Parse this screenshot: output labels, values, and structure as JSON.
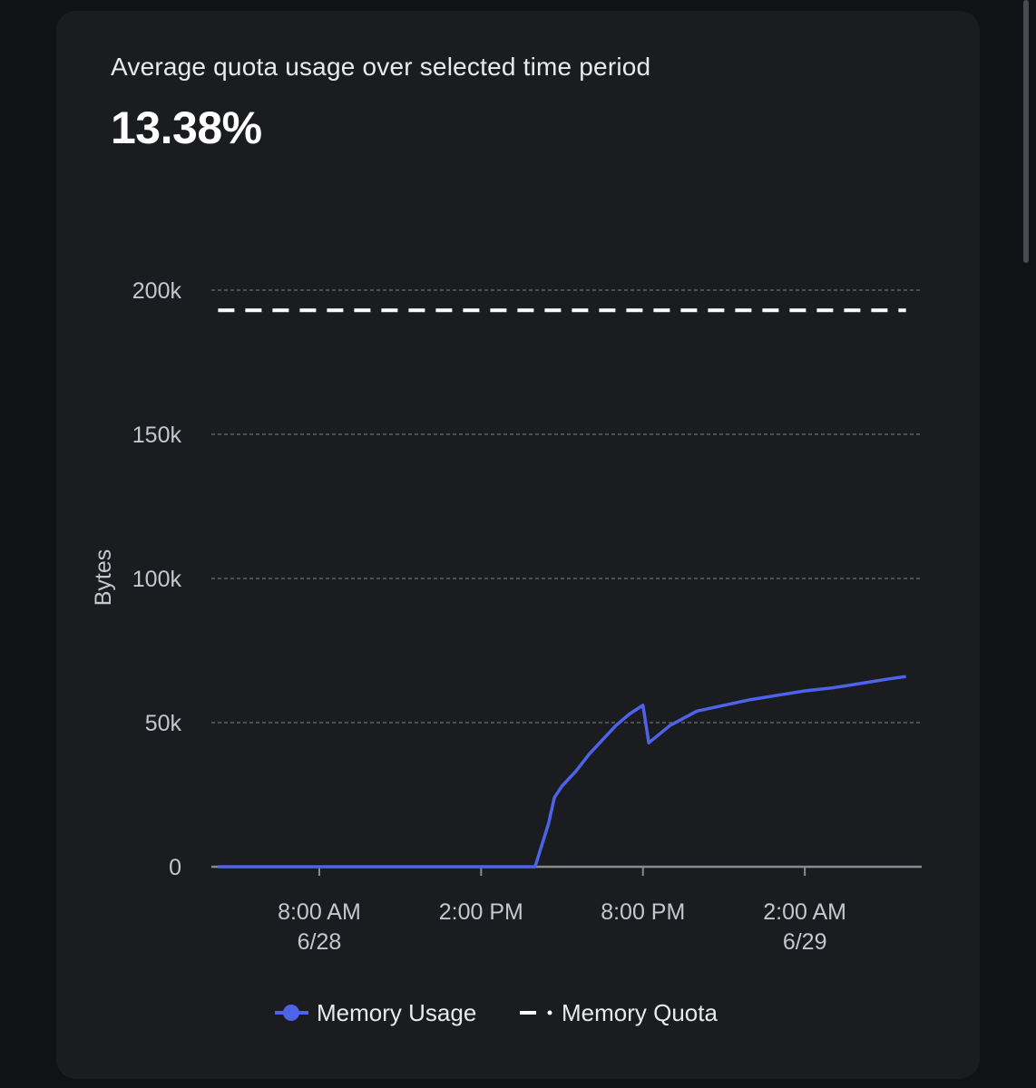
{
  "summary": {
    "caption": "Average quota usage over selected time period",
    "value": "13.38%"
  },
  "colors": {
    "background": "#111216",
    "card": "#1b1c20",
    "usage_line": "#4d63ea",
    "quota_line": "#ffffff",
    "grid": "#6a6b70"
  },
  "chart_data": {
    "type": "line",
    "ylabel": "Bytes",
    "ylim": [
      0,
      200000
    ],
    "yticks": [
      {
        "value": 0,
        "label": "0"
      },
      {
        "value": 50000,
        "label": "50k"
      },
      {
        "value": 100000,
        "label": "100k"
      },
      {
        "value": 150000,
        "label": "150k"
      },
      {
        "value": 200000,
        "label": "200k"
      }
    ],
    "xlim": [
      "2023-06-28T04:00",
      "2023-06-29T06:20"
    ],
    "xticks": [
      {
        "x": "2023-06-28T08:00",
        "line1": "8:00 AM",
        "line2": "6/28"
      },
      {
        "x": "2023-06-28T14:00",
        "line1": "2:00 PM",
        "line2": ""
      },
      {
        "x": "2023-06-28T20:00",
        "line1": "8:00 PM",
        "line2": ""
      },
      {
        "x": "2023-06-29T02:00",
        "line1": "2:00 AM",
        "line2": "6/29"
      }
    ],
    "grid": true,
    "legend": "bottom",
    "series": [
      {
        "name": "Memory Usage",
        "style": "solid",
        "points": [
          {
            "x": "2023-06-28T04:15",
            "y": 0
          },
          {
            "x": "2023-06-28T16:00",
            "y": 0
          },
          {
            "x": "2023-06-28T16:30",
            "y": 15000
          },
          {
            "x": "2023-06-28T16:43",
            "y": 24000
          },
          {
            "x": "2023-06-28T17:00",
            "y": 28000
          },
          {
            "x": "2023-06-28T17:30",
            "y": 33000
          },
          {
            "x": "2023-06-28T18:00",
            "y": 39000
          },
          {
            "x": "2023-06-28T18:30",
            "y": 44000
          },
          {
            "x": "2023-06-28T19:00",
            "y": 49000
          },
          {
            "x": "2023-06-28T19:30",
            "y": 53000
          },
          {
            "x": "2023-06-28T20:00",
            "y": 56000
          },
          {
            "x": "2023-06-28T20:13",
            "y": 43000
          },
          {
            "x": "2023-06-28T21:00",
            "y": 49000
          },
          {
            "x": "2023-06-28T22:00",
            "y": 54000
          },
          {
            "x": "2023-06-28T23:00",
            "y": 56000
          },
          {
            "x": "2023-06-29T00:00",
            "y": 58000
          },
          {
            "x": "2023-06-29T01:00",
            "y": 59500
          },
          {
            "x": "2023-06-29T02:00",
            "y": 61000
          },
          {
            "x": "2023-06-29T03:00",
            "y": 62000
          },
          {
            "x": "2023-06-29T04:00",
            "y": 63500
          },
          {
            "x": "2023-06-29T05:00",
            "y": 65000
          },
          {
            "x": "2023-06-29T05:45",
            "y": 66000
          }
        ]
      },
      {
        "name": "Memory Quota",
        "style": "dashed",
        "points": [
          {
            "x": "2023-06-28T04:15",
            "y": 193000
          },
          {
            "x": "2023-06-29T05:45",
            "y": 193000
          }
        ]
      }
    ]
  }
}
